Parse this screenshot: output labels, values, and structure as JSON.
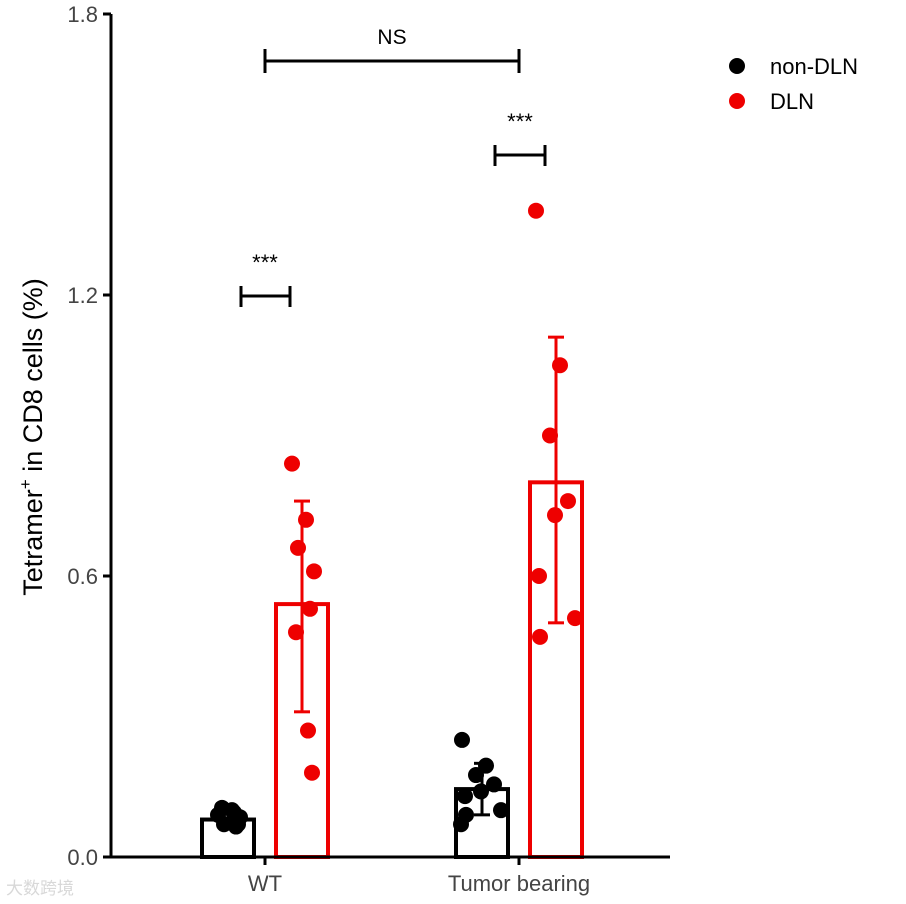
{
  "chart_data": {
    "type": "bar",
    "categories": [
      "WT",
      "Tumor bearing"
    ],
    "ylabel_main": "Tetramer",
    "ylabel_sup": "+",
    "ylabel_rest": " in CD8 cells (%)",
    "ylim": [
      0,
      1.8
    ],
    "yticks": [
      0.0,
      0.6,
      1.2,
      1.8
    ],
    "ytick_labels": [
      "0.0",
      "0.6",
      "1.2",
      "1.8"
    ],
    "grid": false,
    "legend_position": "top-right",
    "series": [
      {
        "name": "non-DLN",
        "color": "#000000",
        "bars": [
          {
            "mean": 0.08,
            "err_low": 0.065,
            "err_high": 0.095,
            "points": [
              0.09,
              0.1,
              0.07,
              0.085,
              0.065,
              0.105,
              0.095,
              0.07
            ]
          },
          {
            "mean": 0.145,
            "err_low": 0.09,
            "err_high": 0.2,
            "points": [
              0.25,
              0.195,
              0.175,
              0.155,
              0.14,
              0.13,
              0.1,
              0.09,
              0.07
            ]
          }
        ]
      },
      {
        "name": "DLN",
        "color": "#ee0000",
        "bars": [
          {
            "mean": 0.54,
            "err_low": 0.31,
            "err_high": 0.76,
            "points": [
              0.84,
              0.72,
              0.66,
              0.61,
              0.53,
              0.48,
              0.27,
              0.18
            ]
          },
          {
            "mean": 0.8,
            "err_low": 0.5,
            "err_high": 1.11,
            "points": [
              1.38,
              1.05,
              0.9,
              0.76,
              0.73,
              0.6,
              0.51,
              0.47
            ]
          }
        ]
      }
    ],
    "annotations": [
      {
        "text": "***",
        "between": "WT non-DLN vs DLN"
      },
      {
        "text": "***",
        "between": "Tumor bearing non-DLN vs DLN"
      },
      {
        "text": "NS",
        "between": "WT vs Tumor bearing"
      }
    ]
  },
  "watermark": "大数跨境"
}
